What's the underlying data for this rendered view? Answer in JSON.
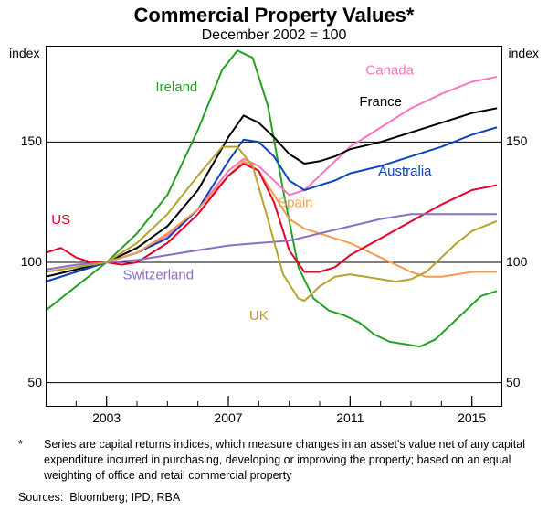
{
  "title": "Commercial Property Values*",
  "subtitle": "December 2002 = 100",
  "footnote_marker": "*",
  "footnote_text": "Series are capital returns indices, which measure changes in an asset's value net of any capital expenditure incurred in purchasing, developing or improving the property; based on an equal weighting of office and retail commercial property",
  "sources_label": "Sources:",
  "sources": "Bloomberg; IPD; RBA",
  "y_axis_title": "index",
  "chart": {
    "type": "line",
    "background_color": "#ffffff",
    "grid_color": "#000000",
    "border_color": "#000000",
    "line_width": 2,
    "xlim": [
      2001,
      2016
    ],
    "ylim": [
      40,
      190
    ],
    "xticks": [
      2003,
      2007,
      2011,
      2015
    ],
    "yticks": [
      50,
      100,
      150
    ],
    "title_fontsize": 22,
    "subtitle_fontsize": 16,
    "tick_fontsize": 14,
    "footnote_fontsize": 12.5,
    "series": [
      {
        "name": "Ireland",
        "color": "#25a223",
        "label_x": 2005.3,
        "label_y": 171,
        "data": [
          [
            2001,
            80
          ],
          [
            2002,
            90
          ],
          [
            2002.5,
            95
          ],
          [
            2003,
            100
          ],
          [
            2004,
            112
          ],
          [
            2005,
            128
          ],
          [
            2006,
            155
          ],
          [
            2006.8,
            180
          ],
          [
            2007.3,
            188
          ],
          [
            2007.8,
            185
          ],
          [
            2008.3,
            165
          ],
          [
            2008.8,
            130
          ],
          [
            2009.3,
            98
          ],
          [
            2009.8,
            85
          ],
          [
            2010.3,
            80
          ],
          [
            2010.8,
            78
          ],
          [
            2011.3,
            75
          ],
          [
            2011.8,
            70
          ],
          [
            2012.3,
            67
          ],
          [
            2012.8,
            66
          ],
          [
            2013.3,
            65
          ],
          [
            2013.8,
            68
          ],
          [
            2014.3,
            74
          ],
          [
            2014.8,
            80
          ],
          [
            2015.3,
            86
          ],
          [
            2015.8,
            88
          ]
        ]
      },
      {
        "name": "Canada",
        "color": "#ff74be",
        "label_x": 2012.3,
        "label_y": 178,
        "data": [
          [
            2001,
            92
          ],
          [
            2002,
            96
          ],
          [
            2003,
            100
          ],
          [
            2004,
            104
          ],
          [
            2005,
            111
          ],
          [
            2006,
            122
          ],
          [
            2007,
            138
          ],
          [
            2007.5,
            143
          ],
          [
            2008,
            140
          ],
          [
            2008.5,
            134
          ],
          [
            2009,
            128
          ],
          [
            2009.5,
            130
          ],
          [
            2010,
            136
          ],
          [
            2010.5,
            142
          ],
          [
            2011,
            148
          ],
          [
            2012,
            156
          ],
          [
            2013,
            164
          ],
          [
            2014,
            170
          ],
          [
            2015,
            175
          ],
          [
            2015.8,
            177
          ]
        ]
      },
      {
        "name": "France",
        "color": "#000000",
        "label_x": 2012,
        "label_y": 165,
        "data": [
          [
            2001,
            94
          ],
          [
            2002,
            97
          ],
          [
            2003,
            100
          ],
          [
            2004,
            106
          ],
          [
            2005,
            115
          ],
          [
            2006,
            130
          ],
          [
            2007,
            152
          ],
          [
            2007.5,
            161
          ],
          [
            2008,
            158
          ],
          [
            2008.5,
            152
          ],
          [
            2009,
            145
          ],
          [
            2009.5,
            141
          ],
          [
            2010,
            142
          ],
          [
            2010.5,
            144
          ],
          [
            2011,
            147
          ],
          [
            2012,
            150
          ],
          [
            2013,
            154
          ],
          [
            2014,
            158
          ],
          [
            2015,
            162
          ],
          [
            2015.8,
            164
          ]
        ]
      },
      {
        "name": "Australia",
        "color": "#0b45bd",
        "label_x": 2012.8,
        "label_y": 136,
        "data": [
          [
            2001,
            92
          ],
          [
            2002,
            96
          ],
          [
            2003,
            100
          ],
          [
            2004,
            104
          ],
          [
            2005,
            110
          ],
          [
            2006,
            122
          ],
          [
            2007,
            142
          ],
          [
            2007.5,
            151
          ],
          [
            2008,
            150
          ],
          [
            2008.5,
            144
          ],
          [
            2009,
            134
          ],
          [
            2009.5,
            130
          ],
          [
            2010,
            132
          ],
          [
            2010.5,
            134
          ],
          [
            2011,
            137
          ],
          [
            2012,
            140
          ],
          [
            2013,
            144
          ],
          [
            2014,
            148
          ],
          [
            2015,
            153
          ],
          [
            2015.8,
            156
          ]
        ]
      },
      {
        "name": "Spain",
        "color": "#f59c4e",
        "label_x": 2009.2,
        "label_y": 123,
        "data": [
          [
            2001,
            96
          ],
          [
            2002,
            98
          ],
          [
            2003,
            100
          ],
          [
            2004,
            104
          ],
          [
            2005,
            112
          ],
          [
            2006,
            122
          ],
          [
            2007,
            136
          ],
          [
            2007.5,
            142
          ],
          [
            2008,
            138
          ],
          [
            2008.5,
            128
          ],
          [
            2009,
            118
          ],
          [
            2009.5,
            114
          ],
          [
            2010,
            112
          ],
          [
            2010.5,
            110
          ],
          [
            2011,
            108
          ],
          [
            2012,
            102
          ],
          [
            2013,
            96
          ],
          [
            2013.5,
            94
          ],
          [
            2014,
            94
          ],
          [
            2014.5,
            95
          ],
          [
            2015,
            96
          ],
          [
            2015.8,
            96
          ]
        ]
      },
      {
        "name": "US",
        "color": "#e6002b",
        "label_x": 2001.5,
        "label_y": 116,
        "data": [
          [
            2001,
            104
          ],
          [
            2001.5,
            106
          ],
          [
            2002,
            102
          ],
          [
            2002.5,
            100
          ],
          [
            2003,
            100
          ],
          [
            2003.5,
            99
          ],
          [
            2004,
            100
          ],
          [
            2005,
            108
          ],
          [
            2006,
            120
          ],
          [
            2007,
            136
          ],
          [
            2007.5,
            141
          ],
          [
            2008,
            138
          ],
          [
            2008.5,
            125
          ],
          [
            2009,
            105
          ],
          [
            2009.5,
            96
          ],
          [
            2010,
            96
          ],
          [
            2010.5,
            98
          ],
          [
            2011,
            103
          ],
          [
            2012,
            110
          ],
          [
            2013,
            117
          ],
          [
            2014,
            124
          ],
          [
            2015,
            130
          ],
          [
            2015.8,
            132
          ]
        ]
      },
      {
        "name": "Switzerland",
        "color": "#8b6fc5",
        "label_x": 2004.7,
        "label_y": 93,
        "data": [
          [
            2001,
            97
          ],
          [
            2002,
            99
          ],
          [
            2003,
            100
          ],
          [
            2004,
            101
          ],
          [
            2005,
            103
          ],
          [
            2006,
            105
          ],
          [
            2007,
            107
          ],
          [
            2008,
            108
          ],
          [
            2009,
            109
          ],
          [
            2010,
            112
          ],
          [
            2011,
            115
          ],
          [
            2012,
            118
          ],
          [
            2013,
            120
          ],
          [
            2014,
            120
          ],
          [
            2015,
            120
          ],
          [
            2015.8,
            120
          ]
        ]
      },
      {
        "name": "UK",
        "color": "#b6a32a",
        "label_x": 2008,
        "label_y": 76,
        "data": [
          [
            2001,
            96
          ],
          [
            2002,
            98
          ],
          [
            2003,
            100
          ],
          [
            2004,
            108
          ],
          [
            2005,
            120
          ],
          [
            2006,
            136
          ],
          [
            2006.8,
            148
          ],
          [
            2007.3,
            148
          ],
          [
            2007.8,
            140
          ],
          [
            2008.3,
            118
          ],
          [
            2008.8,
            95
          ],
          [
            2009.3,
            85
          ],
          [
            2009.5,
            84
          ],
          [
            2010,
            90
          ],
          [
            2010.5,
            94
          ],
          [
            2011,
            95
          ],
          [
            2011.5,
            94
          ],
          [
            2012,
            93
          ],
          [
            2012.5,
            92
          ],
          [
            2013,
            93
          ],
          [
            2013.5,
            96
          ],
          [
            2014,
            102
          ],
          [
            2014.5,
            108
          ],
          [
            2015,
            113
          ],
          [
            2015.8,
            117
          ]
        ]
      }
    ]
  }
}
